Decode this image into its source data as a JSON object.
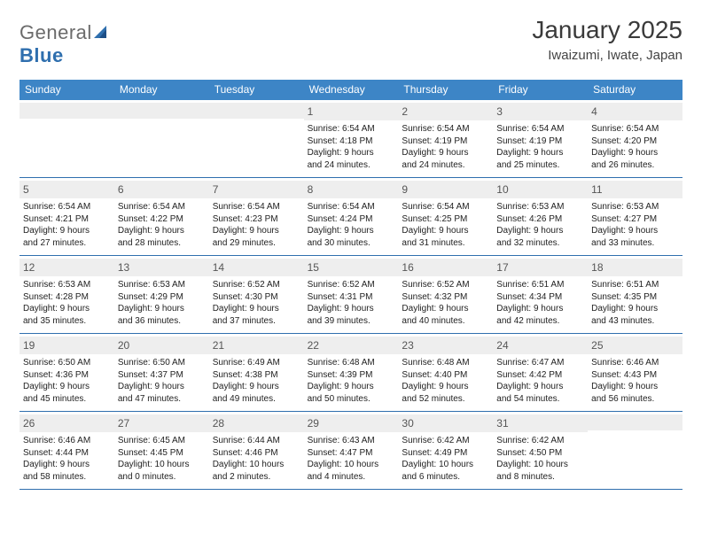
{
  "brand": {
    "name_a": "General",
    "name_b": "Blue"
  },
  "title": "January 2025",
  "location": "Iwaizumi, Iwate, Japan",
  "colors": {
    "header_bar": "#3d85c6",
    "row_divider": "#2f6fae",
    "daynum_bg": "#eeeeee",
    "text": "#333333",
    "brand_grey": "#6b6b6b",
    "brand_blue": "#2f6fae"
  },
  "day_names": [
    "Sunday",
    "Monday",
    "Tuesday",
    "Wednesday",
    "Thursday",
    "Friday",
    "Saturday"
  ],
  "weeks": [
    [
      {
        "n": "",
        "lines": []
      },
      {
        "n": "",
        "lines": []
      },
      {
        "n": "",
        "lines": []
      },
      {
        "n": "1",
        "lines": [
          "Sunrise: 6:54 AM",
          "Sunset: 4:18 PM",
          "Daylight: 9 hours",
          "and 24 minutes."
        ]
      },
      {
        "n": "2",
        "lines": [
          "Sunrise: 6:54 AM",
          "Sunset: 4:19 PM",
          "Daylight: 9 hours",
          "and 24 minutes."
        ]
      },
      {
        "n": "3",
        "lines": [
          "Sunrise: 6:54 AM",
          "Sunset: 4:19 PM",
          "Daylight: 9 hours",
          "and 25 minutes."
        ]
      },
      {
        "n": "4",
        "lines": [
          "Sunrise: 6:54 AM",
          "Sunset: 4:20 PM",
          "Daylight: 9 hours",
          "and 26 minutes."
        ]
      }
    ],
    [
      {
        "n": "5",
        "lines": [
          "Sunrise: 6:54 AM",
          "Sunset: 4:21 PM",
          "Daylight: 9 hours",
          "and 27 minutes."
        ]
      },
      {
        "n": "6",
        "lines": [
          "Sunrise: 6:54 AM",
          "Sunset: 4:22 PM",
          "Daylight: 9 hours",
          "and 28 minutes."
        ]
      },
      {
        "n": "7",
        "lines": [
          "Sunrise: 6:54 AM",
          "Sunset: 4:23 PM",
          "Daylight: 9 hours",
          "and 29 minutes."
        ]
      },
      {
        "n": "8",
        "lines": [
          "Sunrise: 6:54 AM",
          "Sunset: 4:24 PM",
          "Daylight: 9 hours",
          "and 30 minutes."
        ]
      },
      {
        "n": "9",
        "lines": [
          "Sunrise: 6:54 AM",
          "Sunset: 4:25 PM",
          "Daylight: 9 hours",
          "and 31 minutes."
        ]
      },
      {
        "n": "10",
        "lines": [
          "Sunrise: 6:53 AM",
          "Sunset: 4:26 PM",
          "Daylight: 9 hours",
          "and 32 minutes."
        ]
      },
      {
        "n": "11",
        "lines": [
          "Sunrise: 6:53 AM",
          "Sunset: 4:27 PM",
          "Daylight: 9 hours",
          "and 33 minutes."
        ]
      }
    ],
    [
      {
        "n": "12",
        "lines": [
          "Sunrise: 6:53 AM",
          "Sunset: 4:28 PM",
          "Daylight: 9 hours",
          "and 35 minutes."
        ]
      },
      {
        "n": "13",
        "lines": [
          "Sunrise: 6:53 AM",
          "Sunset: 4:29 PM",
          "Daylight: 9 hours",
          "and 36 minutes."
        ]
      },
      {
        "n": "14",
        "lines": [
          "Sunrise: 6:52 AM",
          "Sunset: 4:30 PM",
          "Daylight: 9 hours",
          "and 37 minutes."
        ]
      },
      {
        "n": "15",
        "lines": [
          "Sunrise: 6:52 AM",
          "Sunset: 4:31 PM",
          "Daylight: 9 hours",
          "and 39 minutes."
        ]
      },
      {
        "n": "16",
        "lines": [
          "Sunrise: 6:52 AM",
          "Sunset: 4:32 PM",
          "Daylight: 9 hours",
          "and 40 minutes."
        ]
      },
      {
        "n": "17",
        "lines": [
          "Sunrise: 6:51 AM",
          "Sunset: 4:34 PM",
          "Daylight: 9 hours",
          "and 42 minutes."
        ]
      },
      {
        "n": "18",
        "lines": [
          "Sunrise: 6:51 AM",
          "Sunset: 4:35 PM",
          "Daylight: 9 hours",
          "and 43 minutes."
        ]
      }
    ],
    [
      {
        "n": "19",
        "lines": [
          "Sunrise: 6:50 AM",
          "Sunset: 4:36 PM",
          "Daylight: 9 hours",
          "and 45 minutes."
        ]
      },
      {
        "n": "20",
        "lines": [
          "Sunrise: 6:50 AM",
          "Sunset: 4:37 PM",
          "Daylight: 9 hours",
          "and 47 minutes."
        ]
      },
      {
        "n": "21",
        "lines": [
          "Sunrise: 6:49 AM",
          "Sunset: 4:38 PM",
          "Daylight: 9 hours",
          "and 49 minutes."
        ]
      },
      {
        "n": "22",
        "lines": [
          "Sunrise: 6:48 AM",
          "Sunset: 4:39 PM",
          "Daylight: 9 hours",
          "and 50 minutes."
        ]
      },
      {
        "n": "23",
        "lines": [
          "Sunrise: 6:48 AM",
          "Sunset: 4:40 PM",
          "Daylight: 9 hours",
          "and 52 minutes."
        ]
      },
      {
        "n": "24",
        "lines": [
          "Sunrise: 6:47 AM",
          "Sunset: 4:42 PM",
          "Daylight: 9 hours",
          "and 54 minutes."
        ]
      },
      {
        "n": "25",
        "lines": [
          "Sunrise: 6:46 AM",
          "Sunset: 4:43 PM",
          "Daylight: 9 hours",
          "and 56 minutes."
        ]
      }
    ],
    [
      {
        "n": "26",
        "lines": [
          "Sunrise: 6:46 AM",
          "Sunset: 4:44 PM",
          "Daylight: 9 hours",
          "and 58 minutes."
        ]
      },
      {
        "n": "27",
        "lines": [
          "Sunrise: 6:45 AM",
          "Sunset: 4:45 PM",
          "Daylight: 10 hours",
          "and 0 minutes."
        ]
      },
      {
        "n": "28",
        "lines": [
          "Sunrise: 6:44 AM",
          "Sunset: 4:46 PM",
          "Daylight: 10 hours",
          "and 2 minutes."
        ]
      },
      {
        "n": "29",
        "lines": [
          "Sunrise: 6:43 AM",
          "Sunset: 4:47 PM",
          "Daylight: 10 hours",
          "and 4 minutes."
        ]
      },
      {
        "n": "30",
        "lines": [
          "Sunrise: 6:42 AM",
          "Sunset: 4:49 PM",
          "Daylight: 10 hours",
          "and 6 minutes."
        ]
      },
      {
        "n": "31",
        "lines": [
          "Sunrise: 6:42 AM",
          "Sunset: 4:50 PM",
          "Daylight: 10 hours",
          "and 8 minutes."
        ]
      },
      {
        "n": "",
        "lines": []
      }
    ]
  ]
}
